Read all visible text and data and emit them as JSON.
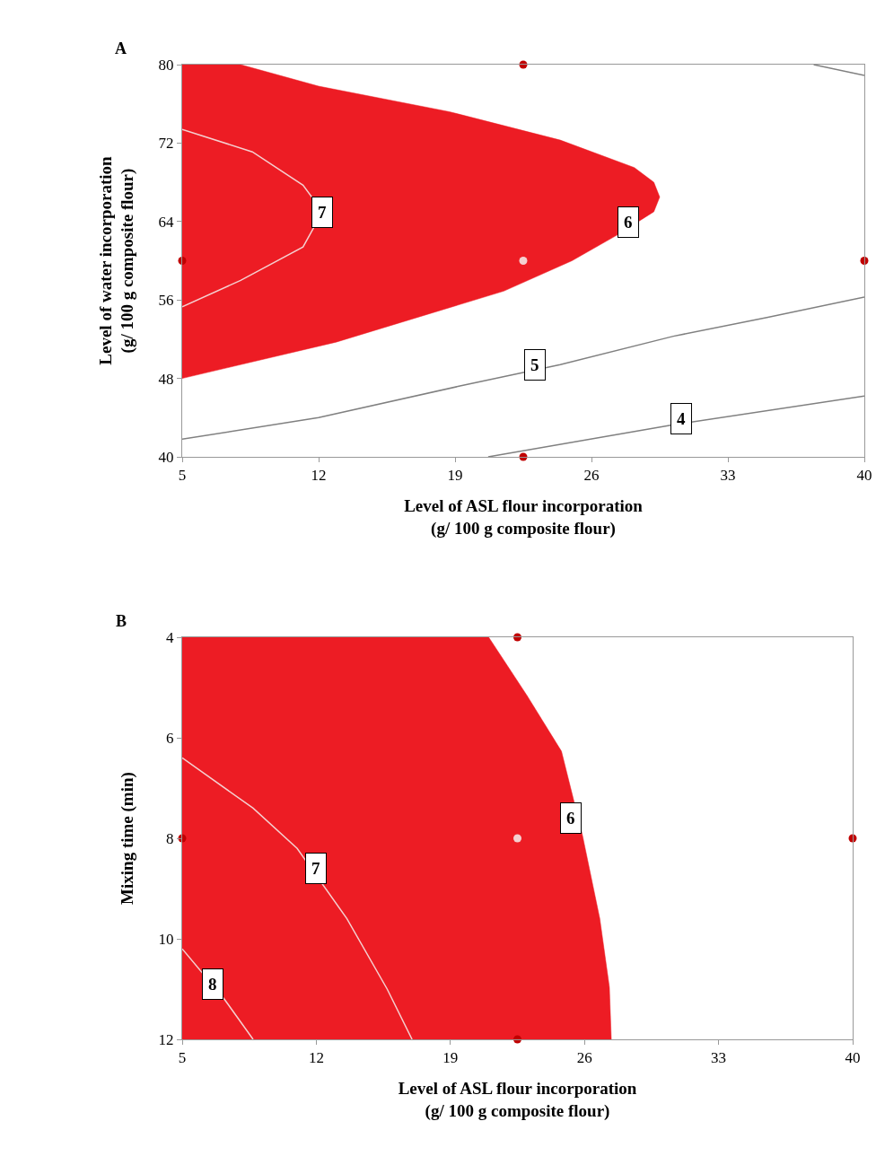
{
  "chart_data": [
    {
      "type": "line",
      "title": "A",
      "xlabel": "Level of ASL flour incorporation\n(g/ 100 g composite flour)",
      "ylabel": "Level of water incorporation\n(g/ 100 g composite flour)",
      "xlim": [
        5,
        40
      ],
      "xticks": [
        5,
        12,
        19,
        26,
        33,
        40
      ],
      "ylim": [
        40,
        80
      ],
      "yticks": [
        40,
        48,
        56,
        64,
        72,
        80
      ],
      "series": [
        {
          "type": "area",
          "color": "#ed1c24",
          "x": [
            5,
            12.9,
            21.5,
            25,
            27.3,
            29.2,
            29.5,
            29.2,
            28.2,
            24.4,
            18.7,
            12,
            8,
            5,
            5
          ],
          "values": [
            48,
            51.7,
            56.9,
            60,
            62.6,
            65,
            66.5,
            68,
            69.5,
            72.3,
            75.2,
            77.8,
            80,
            80,
            48
          ]
        },
        {
          "color": "#f4d0d0",
          "line_style": "solid",
          "x": [
            5,
            8.6,
            11.2,
            12.2,
            11.2,
            8,
            5
          ],
          "values": [
            73.4,
            71.1,
            67.7,
            65,
            61.4,
            58,
            55.3
          ]
        },
        {
          "color": "#808080",
          "line_style": "solid",
          "x": [
            5,
            12,
            19.2,
            24.4,
            30.2,
            35,
            40
          ],
          "values": [
            41.8,
            44,
            47.2,
            49.4,
            52.3,
            54.2,
            56.3
          ]
        },
        {
          "color": "#808080",
          "line_style": "solid",
          "x": [
            20.7,
            30,
            40
          ],
          "values": [
            40,
            43.2,
            46.2
          ]
        },
        {
          "color": "#808080",
          "line_style": "solid",
          "x": [
            37.4,
            40
          ],
          "values": [
            80,
            78.9
          ]
        },
        {
          "type": "scatter",
          "marker": "circle",
          "colors": [
            "#c00000",
            "#c00000",
            "#c00000",
            "#c00000",
            "#f4d0d0"
          ],
          "x": [
            22.5,
            5,
            40,
            22.5,
            22.5
          ],
          "values": [
            80,
            60,
            60,
            40,
            60
          ]
        }
      ],
      "annotations": [
        {
          "text": "7",
          "x": 12.2,
          "y": 64.9
        },
        {
          "text": "6",
          "x": 27.9,
          "y": 63.9
        },
        {
          "text": "5",
          "x": 23.1,
          "y": 49.4
        },
        {
          "text": "4",
          "x": 30.6,
          "y": 43.9
        }
      ]
    },
    {
      "type": "line",
      "title": "B",
      "xlabel": "Level of ASL flour incorporation\n(g/ 100 g composite flour)",
      "ylabel": "Mixing time (min)",
      "xlim": [
        5,
        40
      ],
      "xticks": [
        5,
        12,
        19,
        26,
        33,
        40
      ],
      "ylim": [
        12,
        4
      ],
      "yticks": [
        4,
        6,
        8,
        10,
        12
      ],
      "series": [
        {
          "type": "area",
          "color": "#ed1c24",
          "x": [
            5,
            21,
            23,
            24.8,
            25.9,
            26.8,
            27.3,
            27.4,
            5,
            5
          ],
          "values": [
            4,
            4,
            5.16,
            6.27,
            7.95,
            9.6,
            10.96,
            12,
            12,
            4
          ]
        },
        {
          "color": "#f4d0d0",
          "line_style": "solid",
          "x": [
            5,
            8.7,
            11,
            13.6,
            15.7,
            17
          ],
          "values": [
            6.4,
            7.4,
            8.2,
            9.6,
            11,
            12
          ]
        },
        {
          "color": "#f4d0d0",
          "line_style": "solid",
          "x": [
            5,
            7.2,
            8.7
          ],
          "values": [
            10.2,
            11.2,
            12
          ]
        },
        {
          "type": "scatter",
          "marker": "circle",
          "colors": [
            "#c00000",
            "#c00000",
            "#c00000",
            "#c00000",
            "#f4d0d0"
          ],
          "x": [
            22.5,
            5,
            40,
            22.5,
            22.5
          ],
          "values": [
            4,
            8,
            8,
            12,
            8
          ]
        }
      ],
      "annotations": [
        {
          "text": "6",
          "x": 25.3,
          "y": 7.6
        },
        {
          "text": "7",
          "x": 12,
          "y": 8.6
        },
        {
          "text": "8",
          "x": 6.6,
          "y": 10.9
        }
      ]
    }
  ]
}
